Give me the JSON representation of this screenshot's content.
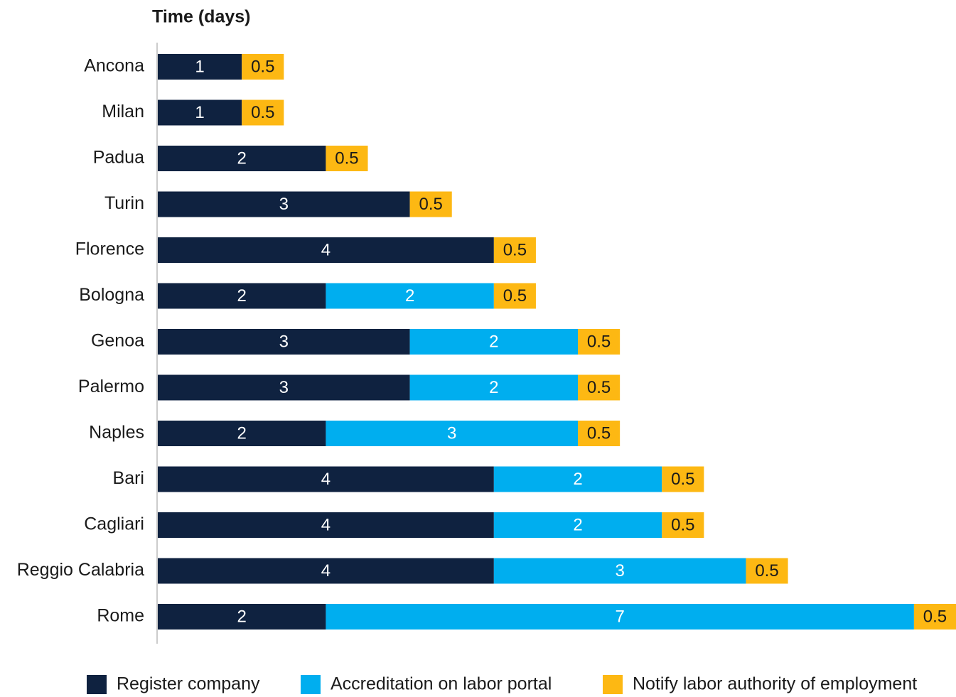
{
  "chart_data": {
    "type": "stacked-bar-horizontal",
    "title": "Time (days)",
    "categories": [
      "Ancona",
      "Milan",
      "Padua",
      "Turin",
      "Florence",
      "Bologna",
      "Genoa",
      "Palermo",
      "Naples",
      "Bari",
      "Cagliari",
      "Reggio Calabria",
      "Rome"
    ],
    "series": [
      {
        "name": "Register company",
        "color": "#0f2240",
        "values": [
          1,
          1,
          2,
          3,
          4,
          2,
          3,
          3,
          2,
          4,
          4,
          4,
          2
        ]
      },
      {
        "name": "Accreditation on labor portal",
        "color": "#00aeef",
        "values": [
          null,
          null,
          null,
          null,
          null,
          2,
          2,
          2,
          3,
          2,
          2,
          3,
          7
        ]
      },
      {
        "name": "Notify labor authority of employment",
        "color": "#fdb813",
        "values": [
          0.5,
          0.5,
          0.5,
          0.5,
          0.5,
          0.5,
          0.5,
          0.5,
          0.5,
          0.5,
          0.5,
          0.5,
          0.5
        ]
      }
    ],
    "xlim": [
      0,
      9.5
    ],
    "legend": "bottom"
  }
}
